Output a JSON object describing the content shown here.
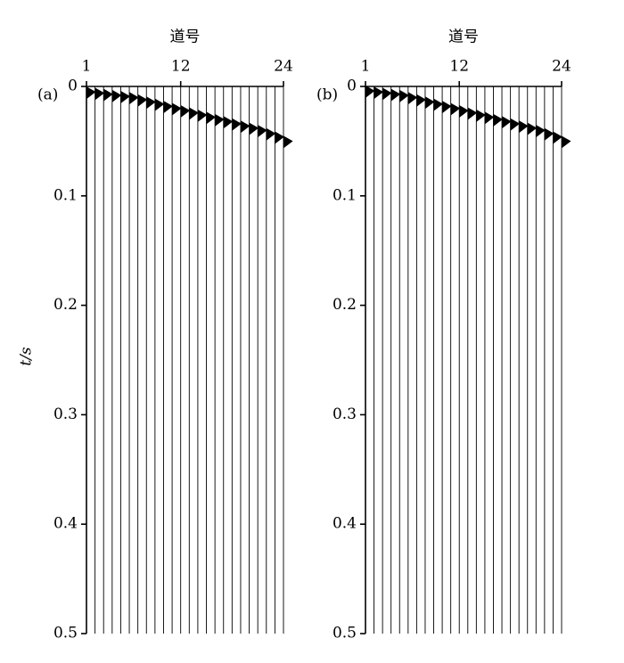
{
  "chart_data": [
    {
      "type": "wiggle",
      "panel_label": "(a)",
      "xlabel": "道号",
      "ylabel": "t/s",
      "xlim": [
        1,
        24
      ],
      "xticks": [
        1,
        12,
        24
      ],
      "ylim": [
        0,
        0.5
      ],
      "yticks": [
        0,
        0.1,
        0.2,
        0.3,
        0.4,
        0.5
      ],
      "y_inverted": true,
      "color": "#000000",
      "x": [
        1,
        2,
        3,
        4,
        5,
        6,
        7,
        8,
        9,
        10,
        11,
        12,
        13,
        14,
        15,
        16,
        17,
        18,
        19,
        20,
        21,
        22,
        23,
        24
      ],
      "values": [
        0.005,
        0.006,
        0.007,
        0.008,
        0.009,
        0.01,
        0.012,
        0.014,
        0.016,
        0.018,
        0.02,
        0.022,
        0.024,
        0.026,
        0.028,
        0.03,
        0.032,
        0.034,
        0.036,
        0.038,
        0.04,
        0.043,
        0.046,
        0.05
      ]
    },
    {
      "type": "wiggle",
      "panel_label": "(b)",
      "xlabel": "道号",
      "xlim": [
        1,
        24
      ],
      "xticks": [
        1,
        12,
        24
      ],
      "ylim": [
        0,
        0.5
      ],
      "yticks": [
        0,
        0.1,
        0.2,
        0.3,
        0.4,
        0.5
      ],
      "y_inverted": true,
      "color": "#000000",
      "x": [
        1,
        2,
        3,
        4,
        5,
        6,
        7,
        8,
        9,
        10,
        11,
        12,
        13,
        14,
        15,
        16,
        17,
        18,
        19,
        20,
        21,
        22,
        23,
        24
      ],
      "values": [
        0.004,
        0.005,
        0.006,
        0.007,
        0.008,
        0.01,
        0.012,
        0.014,
        0.016,
        0.018,
        0.02,
        0.022,
        0.024,
        0.026,
        0.028,
        0.03,
        0.032,
        0.034,
        0.036,
        0.038,
        0.04,
        0.043,
        0.046,
        0.05
      ]
    }
  ]
}
